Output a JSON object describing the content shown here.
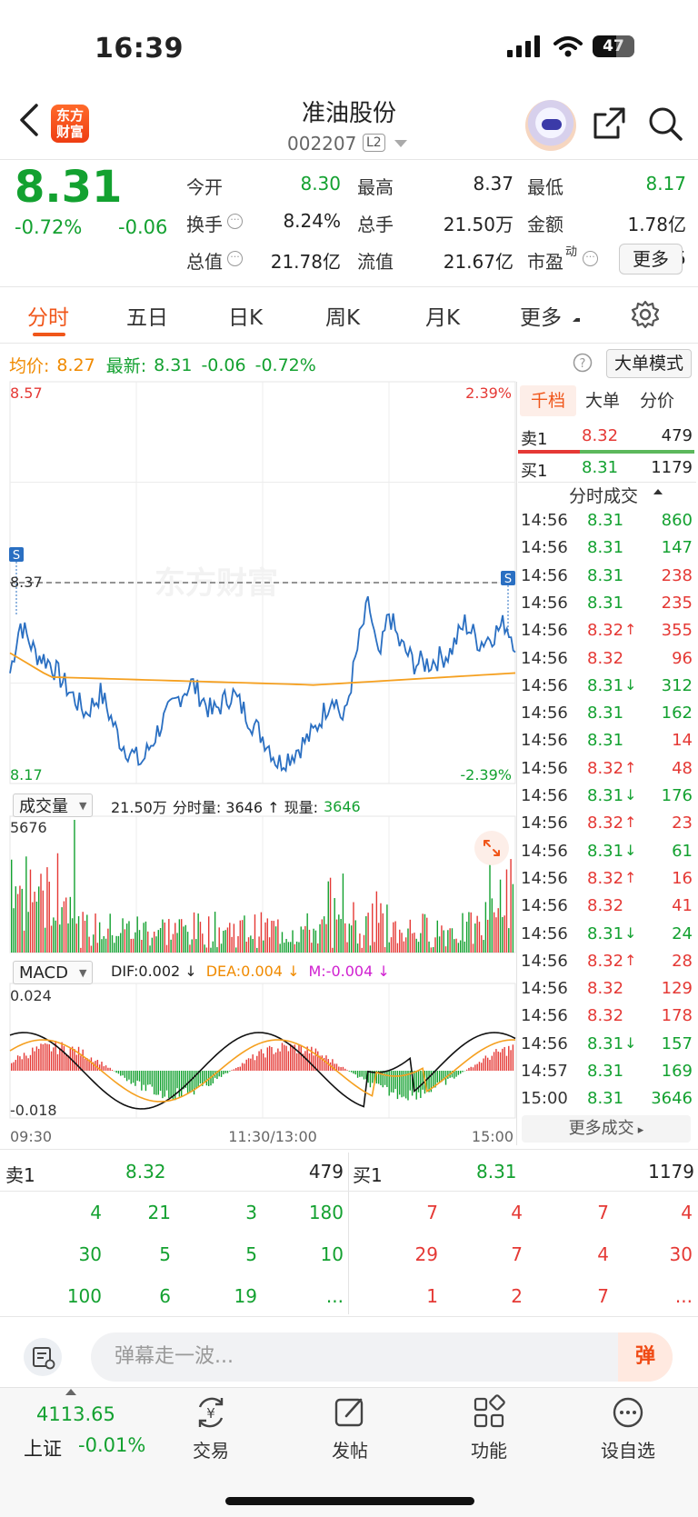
{
  "status_bar": {
    "time": "16:39",
    "battery": "47"
  },
  "header": {
    "logo_text": "东方\n财富",
    "stock_name": "准油股份",
    "stock_code": "002207",
    "level_badge": "L2"
  },
  "quote": {
    "last_price": "8.31",
    "change_pct": "-0.72%",
    "change_abs": "-0.06",
    "fields": [
      {
        "label": "今开",
        "value": "8.30",
        "color": "green"
      },
      {
        "label": "最高",
        "value": "8.37",
        "color": "normal"
      },
      {
        "label": "最低",
        "value": "8.17",
        "color": "green"
      },
      {
        "label": "换手",
        "value": "8.24%",
        "color": "normal",
        "info": true
      },
      {
        "label": "总手",
        "value": "21.50万",
        "color": "normal"
      },
      {
        "label": "金额",
        "value": "1.78亿",
        "color": "normal"
      },
      {
        "label": "总值",
        "value": "21.78亿",
        "color": "normal",
        "info": true
      },
      {
        "label": "流值",
        "value": "21.67亿",
        "color": "normal"
      },
      {
        "label": "市盈",
        "superscript": "动",
        "value": "-51.25",
        "color": "normal",
        "info": true
      }
    ],
    "more_button": "更多"
  },
  "tabs": [
    {
      "label": "分时",
      "active": true
    },
    {
      "label": "五日",
      "active": false
    },
    {
      "label": "日K",
      "active": false
    },
    {
      "label": "周K",
      "active": false
    },
    {
      "label": "月K",
      "active": false
    },
    {
      "label": "更多",
      "active": false
    }
  ],
  "avg_row": {
    "avg_label": "均价:",
    "avg_value": "8.27",
    "latest_label": "最新:",
    "latest_value": "8.31",
    "latest_chg": "-0.06",
    "latest_pct": "-0.72%",
    "mode_button": "大单模式"
  },
  "chart_labels": {
    "price_high": "8.57",
    "price_low": "8.17",
    "price_ref": "8.37",
    "pct_high": "2.39%",
    "pct_low": "-2.39%",
    "watermark": "东方财富",
    "volume_selector": "成交量",
    "volume_total": "21.50万",
    "volume_detail_label": "分时量: 3646 ↑ 现量:",
    "volume_now": "3646",
    "volume_max": "5676",
    "macd_selector": "MACD",
    "dif": "DIF:0.002 ↓",
    "dea": "DEA:0.004 ↓",
    "m": "M:-0.004 ↓",
    "macd_high": "0.024",
    "macd_low": "-0.018",
    "time_start": "09:30",
    "time_mid": "11:30/13:00",
    "time_end": "15:00",
    "marker": "S"
  },
  "colors": {
    "up": "#e53935",
    "down": "#13a130",
    "price_line": "#2a6fc2",
    "avg_line": "#f5a020",
    "accent": "#f0561a"
  },
  "side_panel": {
    "tabs": [
      "千档",
      "大单",
      "分价"
    ],
    "sell1": {
      "label": "卖1",
      "price": "8.32",
      "vol": "479"
    },
    "buy1": {
      "label": "买1",
      "price": "8.31",
      "vol": "1179"
    },
    "trades_header": "分时成交",
    "trades": [
      {
        "t": "14:56",
        "p": "8.31",
        "v": "860",
        "c": "green",
        "a": ""
      },
      {
        "t": "14:56",
        "p": "8.31",
        "v": "147",
        "c": "green",
        "a": ""
      },
      {
        "t": "14:56",
        "p": "8.31",
        "v": "238",
        "c": "red",
        "a": ""
      },
      {
        "t": "14:56",
        "p": "8.31",
        "v": "235",
        "c": "red",
        "a": ""
      },
      {
        "t": "14:56",
        "p": "8.32",
        "v": "355",
        "c": "red",
        "a": "↑"
      },
      {
        "t": "14:56",
        "p": "8.32",
        "v": "96",
        "c": "red",
        "a": ""
      },
      {
        "t": "14:56",
        "p": "8.31",
        "v": "312",
        "c": "green",
        "a": "↓"
      },
      {
        "t": "14:56",
        "p": "8.31",
        "v": "162",
        "c": "green",
        "a": ""
      },
      {
        "t": "14:56",
        "p": "8.31",
        "v": "14",
        "c": "red",
        "a": ""
      },
      {
        "t": "14:56",
        "p": "8.32",
        "v": "48",
        "c": "red",
        "a": "↑"
      },
      {
        "t": "14:56",
        "p": "8.31",
        "v": "176",
        "c": "green",
        "a": "↓"
      },
      {
        "t": "14:56",
        "p": "8.32",
        "v": "23",
        "c": "red",
        "a": "↑"
      },
      {
        "t": "14:56",
        "p": "8.31",
        "v": "61",
        "c": "green",
        "a": "↓"
      },
      {
        "t": "14:56",
        "p": "8.32",
        "v": "16",
        "c": "red",
        "a": "↑"
      },
      {
        "t": "14:56",
        "p": "8.32",
        "v": "41",
        "c": "red",
        "a": ""
      },
      {
        "t": "14:56",
        "p": "8.31",
        "v": "24",
        "c": "green",
        "a": "↓"
      },
      {
        "t": "14:56",
        "p": "8.32",
        "v": "28",
        "c": "red",
        "a": "↑"
      },
      {
        "t": "14:56",
        "p": "8.32",
        "v": "129",
        "c": "red",
        "a": ""
      },
      {
        "t": "14:56",
        "p": "8.32",
        "v": "178",
        "c": "red",
        "a": ""
      },
      {
        "t": "14:56",
        "p": "8.31",
        "v": "157",
        "c": "green",
        "a": "↓"
      },
      {
        "t": "14:57",
        "p": "8.31",
        "v": "169",
        "c": "green",
        "a": ""
      },
      {
        "t": "15:00",
        "p": "8.31",
        "v": "3646",
        "c": "green",
        "a": ""
      }
    ],
    "more_trades": "更多成交"
  },
  "order_book": {
    "sell_label": "卖1",
    "sell_price": "8.32",
    "sell_vol": "479",
    "buy_label": "买1",
    "buy_price": "8.31",
    "buy_vol": "1179",
    "sell_queue": [
      [
        "4",
        "21",
        "3",
        "180"
      ],
      [
        "30",
        "5",
        "5",
        "10"
      ],
      [
        "100",
        "6",
        "19",
        "..."
      ]
    ],
    "buy_queue": [
      [
        "7",
        "4",
        "7",
        "4"
      ],
      [
        "29",
        "7",
        "4",
        "30"
      ],
      [
        "1",
        "2",
        "7",
        "..."
      ]
    ]
  },
  "comment_bar": {
    "placeholder": "弹幕走一波...",
    "danmaku_label": "弹"
  },
  "bottom_nav": {
    "index_value": "4113.65",
    "index_name": "上证",
    "index_chg": "-0.01%",
    "items": [
      "交易",
      "发帖",
      "功能",
      "设自选"
    ]
  }
}
